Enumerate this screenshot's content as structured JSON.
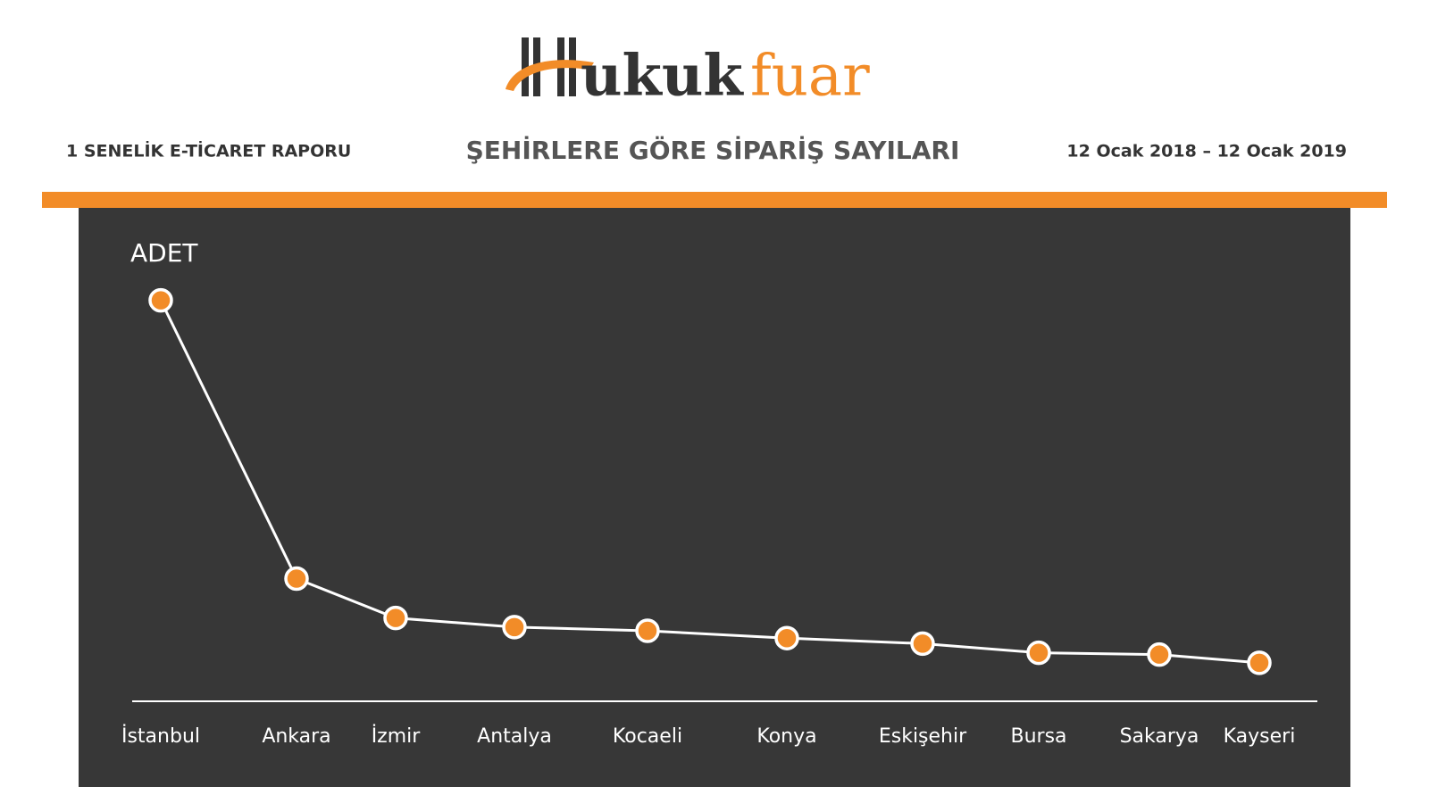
{
  "header": {
    "logo_a": "ukuk",
    "logo_b": "fuar",
    "left": "1 SENELİK  E-TİCARET RAPORU",
    "title": "ŞEHİRLERE GÖRE SİPARİŞ SAYILARI",
    "right": "12 Ocak 2018 – 12 Ocak 2019"
  },
  "chart_data": {
    "type": "line",
    "y_label": "ADET",
    "categories": [
      "İstanbul",
      "Ankara",
      "İzmir",
      "Antalya",
      "Kocaeli",
      "Konya",
      "Eskişehir",
      "Bursa",
      "Sakarya",
      "Kayseri"
    ],
    "values": [
      438,
      134,
      91,
      81,
      77,
      69,
      63,
      53,
      51,
      42
    ],
    "color": "#f28c28",
    "ylim": [
      0,
      500
    ]
  }
}
